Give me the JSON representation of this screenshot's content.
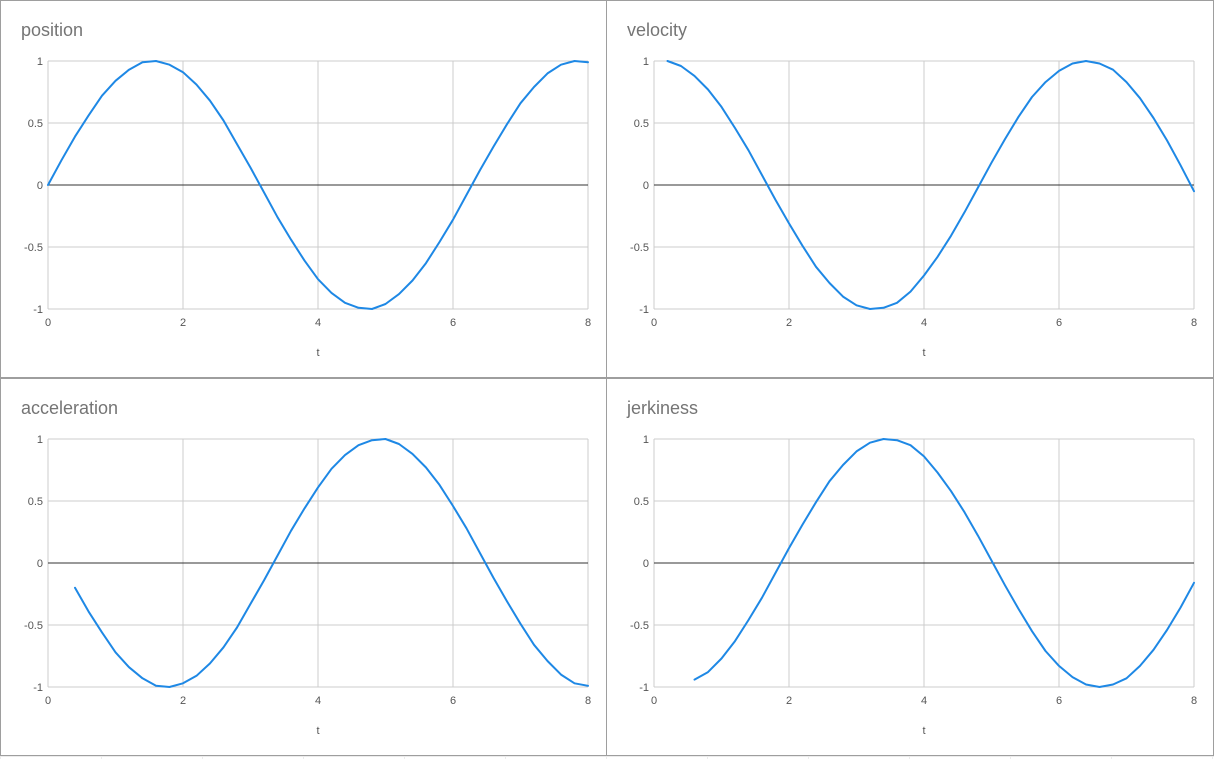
{
  "chart_data": [
    {
      "type": "line",
      "title": "position",
      "xlabel": "t",
      "ylabel": "",
      "xlim": [
        0,
        8
      ],
      "ylim": [
        -1,
        1
      ],
      "xticks": [
        "0",
        "2",
        "4",
        "6",
        "8"
      ],
      "yticks": [
        "1",
        "0.5",
        "0",
        "-0.5",
        "-1"
      ],
      "grid": true,
      "series_color": "#1e88e5",
      "series": [
        {
          "x": [
            0,
            0.2,
            0.4,
            0.6,
            0.8,
            1.0,
            1.2,
            1.4,
            1.6,
            1.8,
            2.0,
            2.2,
            2.4,
            2.6,
            2.8,
            3.0,
            3.2,
            3.4,
            3.6,
            3.8,
            4.0,
            4.2,
            4.4,
            4.6,
            4.8,
            5.0,
            5.2,
            5.4,
            5.6,
            5.8,
            6.0,
            6.2,
            6.4,
            6.6,
            6.8,
            7.0,
            7.2,
            7.4,
            7.6,
            7.8,
            8.0
          ],
          "values": [
            0,
            0.2,
            0.39,
            0.56,
            0.72,
            0.84,
            0.93,
            0.99,
            1.0,
            0.97,
            0.91,
            0.81,
            0.68,
            0.52,
            0.33,
            0.14,
            -0.06,
            -0.26,
            -0.44,
            -0.61,
            -0.76,
            -0.87,
            -0.95,
            -0.99,
            -1.0,
            -0.96,
            -0.88,
            -0.77,
            -0.63,
            -0.46,
            -0.28,
            -0.08,
            0.12,
            0.31,
            0.49,
            0.66,
            0.79,
            0.9,
            0.97,
            1.0,
            0.99
          ]
        }
      ]
    },
    {
      "type": "line",
      "title": "velocity",
      "xlabel": "t",
      "ylabel": "",
      "xlim": [
        0,
        8
      ],
      "ylim": [
        -1,
        1
      ],
      "xticks": [
        "0",
        "2",
        "4",
        "6",
        "8"
      ],
      "yticks": [
        "1",
        "0.5",
        "0",
        "-0.5",
        "-1"
      ],
      "grid": true,
      "series_color": "#1e88e5",
      "series": [
        {
          "x": [
            0.2,
            0.4,
            0.6,
            0.8,
            1.0,
            1.2,
            1.4,
            1.6,
            1.8,
            2.0,
            2.2,
            2.4,
            2.6,
            2.8,
            3.0,
            3.2,
            3.4,
            3.6,
            3.8,
            4.0,
            4.2,
            4.4,
            4.6,
            4.8,
            5.0,
            5.2,
            5.4,
            5.6,
            5.8,
            6.0,
            6.2,
            6.4,
            6.6,
            6.8,
            7.0,
            7.2,
            7.4,
            7.6,
            7.8,
            8.0
          ],
          "values": [
            1.0,
            0.96,
            0.88,
            0.77,
            0.63,
            0.46,
            0.28,
            0.08,
            -0.12,
            -0.31,
            -0.49,
            -0.66,
            -0.79,
            -0.9,
            -0.97,
            -1.0,
            -0.99,
            -0.95,
            -0.86,
            -0.73,
            -0.58,
            -0.41,
            -0.22,
            -0.02,
            0.18,
            0.37,
            0.55,
            0.71,
            0.83,
            0.92,
            0.98,
            1.0,
            0.98,
            0.93,
            0.83,
            0.7,
            0.54,
            0.36,
            0.16,
            -0.05
          ]
        }
      ]
    },
    {
      "type": "line",
      "title": "acceleration",
      "xlabel": "t",
      "ylabel": "",
      "xlim": [
        0,
        8
      ],
      "ylim": [
        -1,
        1
      ],
      "xticks": [
        "0",
        "2",
        "4",
        "6",
        "8"
      ],
      "yticks": [
        "1",
        "0.5",
        "0",
        "-0.5",
        "-1"
      ],
      "grid": true,
      "series_color": "#1e88e5",
      "series": [
        {
          "x": [
            0.4,
            0.6,
            0.8,
            1.0,
            1.2,
            1.4,
            1.6,
            1.8,
            2.0,
            2.2,
            2.4,
            2.6,
            2.8,
            3.0,
            3.2,
            3.4,
            3.6,
            3.8,
            4.0,
            4.2,
            4.4,
            4.6,
            4.8,
            5.0,
            5.2,
            5.4,
            5.6,
            5.8,
            6.0,
            6.2,
            6.4,
            6.6,
            6.8,
            7.0,
            7.2,
            7.4,
            7.6,
            7.8,
            8.0
          ],
          "values": [
            -0.2,
            -0.39,
            -0.56,
            -0.72,
            -0.84,
            -0.93,
            -0.99,
            -1.0,
            -0.97,
            -0.91,
            -0.81,
            -0.68,
            -0.52,
            -0.33,
            -0.14,
            0.06,
            0.26,
            0.44,
            0.61,
            0.76,
            0.87,
            0.95,
            0.99,
            1.0,
            0.96,
            0.88,
            0.77,
            0.63,
            0.46,
            0.28,
            0.08,
            -0.12,
            -0.31,
            -0.49,
            -0.66,
            -0.79,
            -0.9,
            -0.97,
            -0.99
          ]
        }
      ]
    },
    {
      "type": "line",
      "title": "jerkiness",
      "xlabel": "t",
      "ylabel": "",
      "xlim": [
        0,
        8
      ],
      "ylim": [
        -1,
        1
      ],
      "xticks": [
        "0",
        "2",
        "4",
        "6",
        "8"
      ],
      "yticks": [
        "1",
        "0.5",
        "0",
        "-0.5",
        "-1"
      ],
      "grid": true,
      "series_color": "#1e88e5",
      "series": [
        {
          "x": [
            0.6,
            0.8,
            1.0,
            1.2,
            1.4,
            1.6,
            1.8,
            2.0,
            2.2,
            2.4,
            2.6,
            2.8,
            3.0,
            3.2,
            3.4,
            3.6,
            3.8,
            4.0,
            4.2,
            4.4,
            4.6,
            4.8,
            5.0,
            5.2,
            5.4,
            5.6,
            5.8,
            6.0,
            6.2,
            6.4,
            6.6,
            6.8,
            7.0,
            7.2,
            7.4,
            7.6,
            7.8,
            8.0
          ],
          "values": [
            -0.94,
            -0.88,
            -0.77,
            -0.63,
            -0.46,
            -0.28,
            -0.08,
            0.12,
            0.31,
            0.49,
            0.66,
            0.79,
            0.9,
            0.97,
            1.0,
            0.99,
            0.95,
            0.86,
            0.73,
            0.58,
            0.41,
            0.22,
            0.02,
            -0.18,
            -0.37,
            -0.55,
            -0.71,
            -0.83,
            -0.92,
            -0.98,
            -1.0,
            -0.98,
            -0.93,
            -0.83,
            -0.7,
            -0.54,
            -0.36,
            -0.16
          ]
        }
      ]
    }
  ]
}
